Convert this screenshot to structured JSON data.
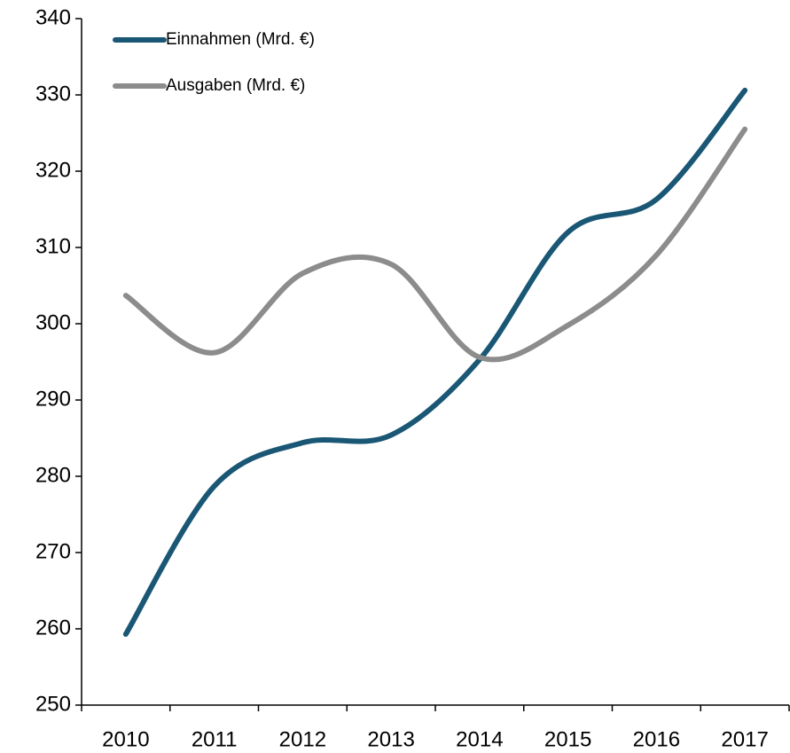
{
  "chart_data": {
    "type": "line",
    "categories": [
      "2010",
      "2011",
      "2012",
      "2013",
      "2014",
      "2015",
      "2016",
      "2017"
    ],
    "series": [
      {
        "name": "Einnahmen (Mrd. €)",
        "color": "#1a5775",
        "values": [
          259.3,
          278.7,
          284.4,
          285.4,
          295.3,
          312.0,
          316.3,
          330.6
        ]
      },
      {
        "name": "Ausgaben (Mrd. €)",
        "color": "#8c8c8c",
        "values": [
          303.7,
          296.2,
          306.6,
          307.8,
          295.6,
          299.8,
          309.0,
          325.5
        ]
      }
    ],
    "ylim": [
      250,
      340
    ],
    "yticks": [
      250,
      260,
      270,
      280,
      290,
      300,
      310,
      320,
      330,
      340
    ],
    "legend": "upper left"
  }
}
